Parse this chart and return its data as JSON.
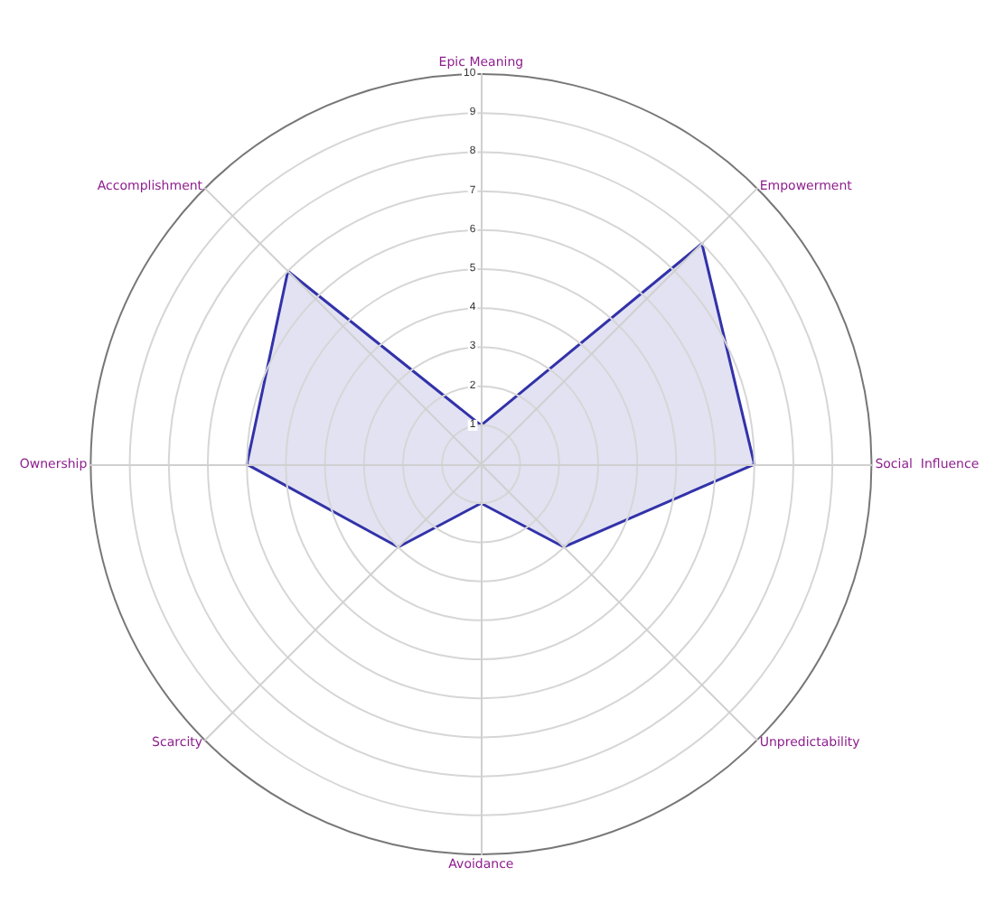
{
  "chart_data": {
    "type": "radar",
    "categories": [
      "Epic Meaning",
      "Empowerment",
      "Social  Influence",
      "Unpredictability",
      "Avoidance",
      "Scarcity",
      "Ownership",
      "Accomplishment"
    ],
    "series": [
      {
        "color": "#3333aa",
        "values": [
          1,
          8,
          7,
          3,
          1,
          3,
          6,
          7
        ]
      }
    ],
    "ylim": [
      0,
      10
    ],
    "yticks": [
      1,
      2,
      3,
      4,
      5,
      6,
      7,
      8,
      9,
      10
    ],
    "grid": true
  }
}
